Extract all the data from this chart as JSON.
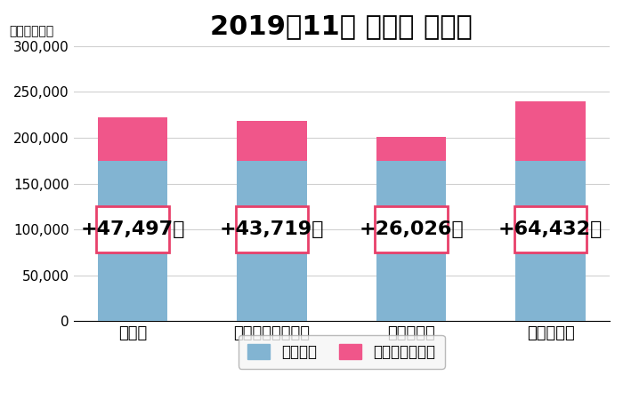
{
  "title": "2019年11月 東京都 正社員",
  "unit_label": "（単位：円）",
  "categories": [
    "美容師",
    "エステティシャン",
    "ネイリスト",
    "アイリスト"
  ],
  "base_values": [
    175000,
    175000,
    175000,
    175000
  ],
  "diff_values": [
    47497,
    43719,
    26026,
    64432
  ],
  "diff_labels": [
    "+47,497円",
    "+43,719円",
    "+26,026円",
    "+64,432円"
  ],
  "bar_color_blue": "#82b4d2",
  "bar_color_pink": "#f0568a",
  "legend_blue": "最低賃金",
  "legend_pink": "最低賃金との差",
  "ylim": [
    0,
    300000
  ],
  "yticks": [
    0,
    50000,
    100000,
    150000,
    200000,
    250000,
    300000
  ],
  "background_color": "#ffffff",
  "grid_color": "#d0d0d0",
  "title_fontsize": 22,
  "label_fontsize": 13,
  "annotation_fontsize": 16,
  "box_edge_color": "#e8406a",
  "unit_label_fontsize": 10,
  "ytick_fontsize": 11,
  "legend_fontsize": 12
}
